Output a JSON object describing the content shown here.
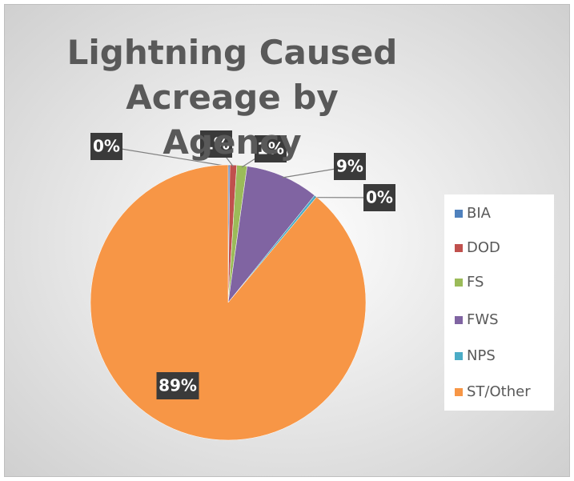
{
  "chart_data": {
    "type": "pie",
    "title": "Lightning Caused Acreage by Agency",
    "categories": [
      "BIA",
      "DOD",
      "FS",
      "FWS",
      "NPS",
      "ST/Other"
    ],
    "values": [
      0.2,
      0.8,
      1.2,
      8.6,
      0.3,
      88.9
    ],
    "value_labels": [
      "0%",
      "1%",
      "1%",
      "9%",
      "0%",
      "89%"
    ],
    "colors": [
      "#4f81bd",
      "#c0504d",
      "#9bbb59",
      "#8064a2",
      "#4bacc6",
      "#f79646"
    ],
    "legend": "right"
  }
}
